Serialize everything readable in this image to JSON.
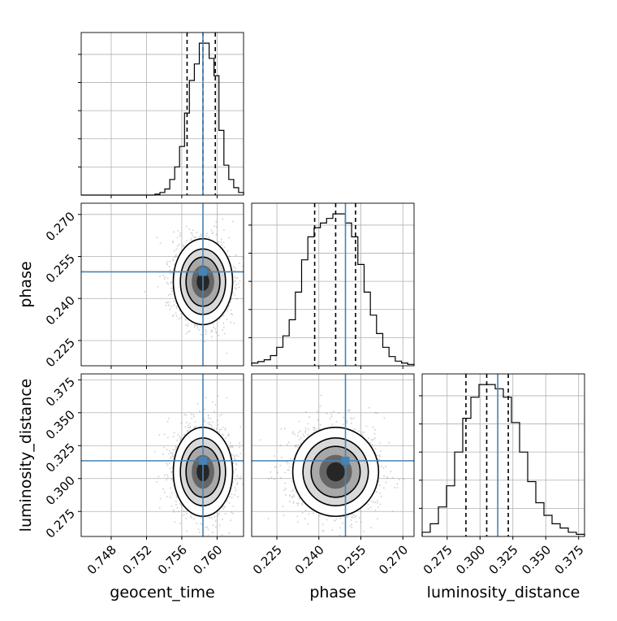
{
  "chart_data": {
    "type": "corner",
    "params": [
      "geocent_time",
      "phase",
      "luminosity_distance"
    ],
    "truths": {
      "geocent_time": 0.7584,
      "phase": 0.2495,
      "luminosity_distance": 0.3135
    },
    "quantiles": {
      "geocent_time": [
        0.7566,
        0.7584,
        0.7598
      ],
      "phase": [
        0.2385,
        0.246,
        0.2531
      ],
      "luminosity_distance": [
        0.2893,
        0.3051,
        0.3215
      ]
    },
    "ranges": {
      "geocent_time": [
        0.7446,
        0.763
      ],
      "phase": [
        0.216,
        0.274
      ],
      "luminosity_distance": [
        0.256,
        0.3795
      ]
    },
    "ticks": {
      "geocent_time": [
        0.748,
        0.752,
        0.756,
        0.76
      ],
      "phase": [
        0.225,
        0.24,
        0.255,
        0.27
      ],
      "luminosity_distance": [
        0.275,
        0.3,
        0.325,
        0.35,
        0.375
      ]
    },
    "tick_labels": {
      "geocent_time": [
        "0.748",
        "0.752",
        "0.756",
        "0.760"
      ],
      "phase": [
        "0.225",
        "0.240",
        "0.255",
        "0.270"
      ],
      "luminosity_distance": [
        "0.275",
        "0.300",
        "0.325",
        "0.350",
        "0.375"
      ]
    },
    "histograms": {
      "geocent_time": {
        "counts": [
          0,
          0,
          0,
          0,
          0,
          0,
          0,
          0,
          0,
          0,
          0,
          0,
          0,
          0,
          0,
          0.2,
          0.6,
          1.4,
          3.6,
          6.5,
          11.2,
          18.9,
          26.4,
          30.2,
          35,
          35,
          31.5,
          27.5,
          14.9,
          6.9,
          3.6,
          1.7,
          0.6
        ]
      },
      "phase": {
        "counts": [
          0.6,
          0.9,
          1.3,
          2.2,
          4,
          6.5,
          10,
          16,
          23,
          28,
          30,
          31,
          32,
          33,
          33,
          31,
          28,
          22,
          16,
          11,
          7,
          4,
          2,
          1,
          0.6,
          0.3
        ]
      },
      "luminosity_distance": {
        "counts": [
          1,
          3,
          7,
          12,
          20,
          28,
          33,
          36,
          36,
          35,
          33,
          27,
          20,
          13,
          8,
          5,
          3,
          2,
          1,
          0.5
        ]
      }
    },
    "grid": true
  }
}
